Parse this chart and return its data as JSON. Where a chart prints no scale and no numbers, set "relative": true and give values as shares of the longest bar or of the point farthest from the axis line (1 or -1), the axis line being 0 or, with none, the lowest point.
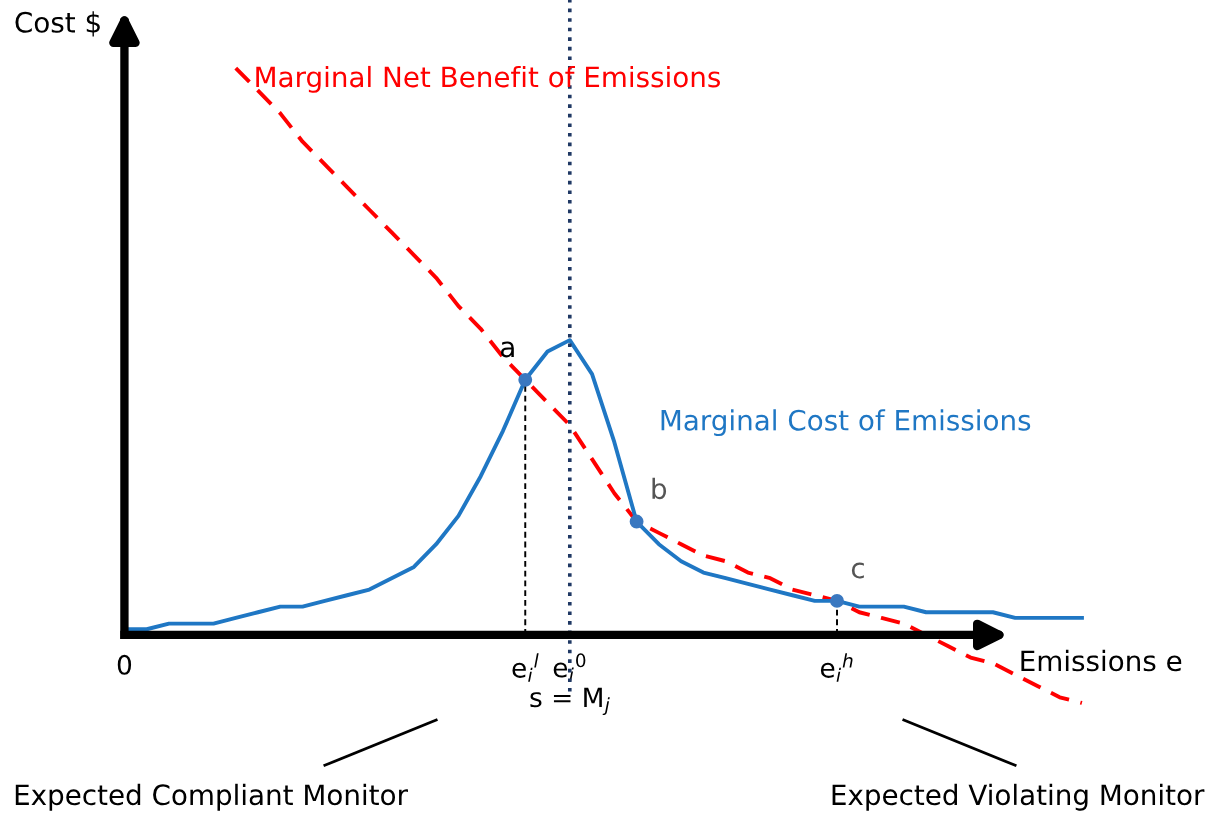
{
  "chart_data": {
    "type": "line",
    "relative": true,
    "ylabel": "Cost $",
    "xlabel": "Emissions e",
    "categories": [
      "0",
      null,
      null,
      null,
      null,
      null,
      null,
      null,
      null,
      null,
      null,
      null,
      null,
      null,
      null,
      null,
      null,
      null,
      "e$_{i}$$^{l}$",
      null,
      "e$_{i}$$^{0}$\ns = M$_{j}$",
      null,
      null,
      null,
      null,
      null,
      null,
      null,
      null,
      null,
      null,
      null,
      "e$_{i}$$^{h}$",
      null,
      null,
      null,
      null,
      null,
      null,
      null,
      null,
      null,
      null,
      null
    ],
    "legend": false,
    "series": [
      {
        "name": "Marginal Net Benefit of Emissions",
        "color": "#ff0000",
        "line_style": "dashed",
        "values": [
          null,
          null,
          null,
          null,
          null,
          1.0,
          0.96,
          0.92,
          0.87,
          0.83,
          0.79,
          0.75,
          0.71,
          0.67,
          0.63,
          0.58,
          0.54,
          0.49,
          0.45,
          0.41,
          0.37,
          0.31,
          0.25,
          0.2,
          0.18,
          0.16,
          0.14,
          0.13,
          0.11,
          0.1,
          0.08,
          0.07,
          0.06,
          0.04,
          0.03,
          0.02,
          0,
          -0.02,
          -0.04,
          -0.05,
          -0.07,
          -0.09,
          -0.11,
          -0.12
        ]
      },
      {
        "name": "Marginal Cost of Emissions",
        "color": "#1f77c4",
        "line_style": "solid",
        "values": [
          0.01,
          0.01,
          0.02,
          0.02,
          0.02,
          0.03,
          0.04,
          0.05,
          0.05,
          0.06,
          0.07,
          0.08,
          0.1,
          0.12,
          0.16,
          0.21,
          0.28,
          0.36,
          0.45,
          0.5,
          0.52,
          0.46,
          0.34,
          0.2,
          0.16,
          0.13,
          0.11,
          0.1,
          0.09,
          0.08,
          0.07,
          0.06,
          0.06,
          0.05,
          0.05,
          0.05,
          0.04,
          0.04,
          0.04,
          0.04,
          0.03,
          0.03,
          0.03,
          0.03
        ]
      }
    ],
    "ref_lines": [
      {
        "axis": "x",
        "value": "e$_{i}$$^{0}$\ns = M$_{j}$",
        "color": "#1f3864",
        "line_style": "dotted"
      }
    ],
    "annotations": [
      {
        "text": "a",
        "x": "e$_{i}$$^{l}$",
        "y": 0.45
      },
      {
        "text": "b",
        "y": 0.2
      },
      {
        "text": "c",
        "x": "e$_{i}$$^{h}$",
        "y": 0.06
      },
      "Expected Compliant Monitor",
      "Expected Violating Monitor"
    ]
  }
}
